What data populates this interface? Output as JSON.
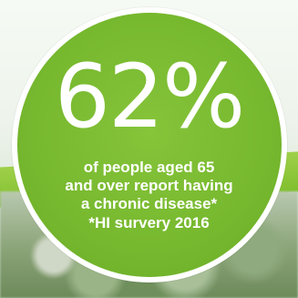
{
  "stat": {
    "value": "62%",
    "description_lines": [
      "of people aged 65",
      "and over report having",
      "a chronic disease*"
    ],
    "source": "*HI survery 2016"
  },
  "colors": {
    "circle_green": "#7aba2f",
    "circle_border": "#ffffff",
    "text": "#ffffff"
  }
}
